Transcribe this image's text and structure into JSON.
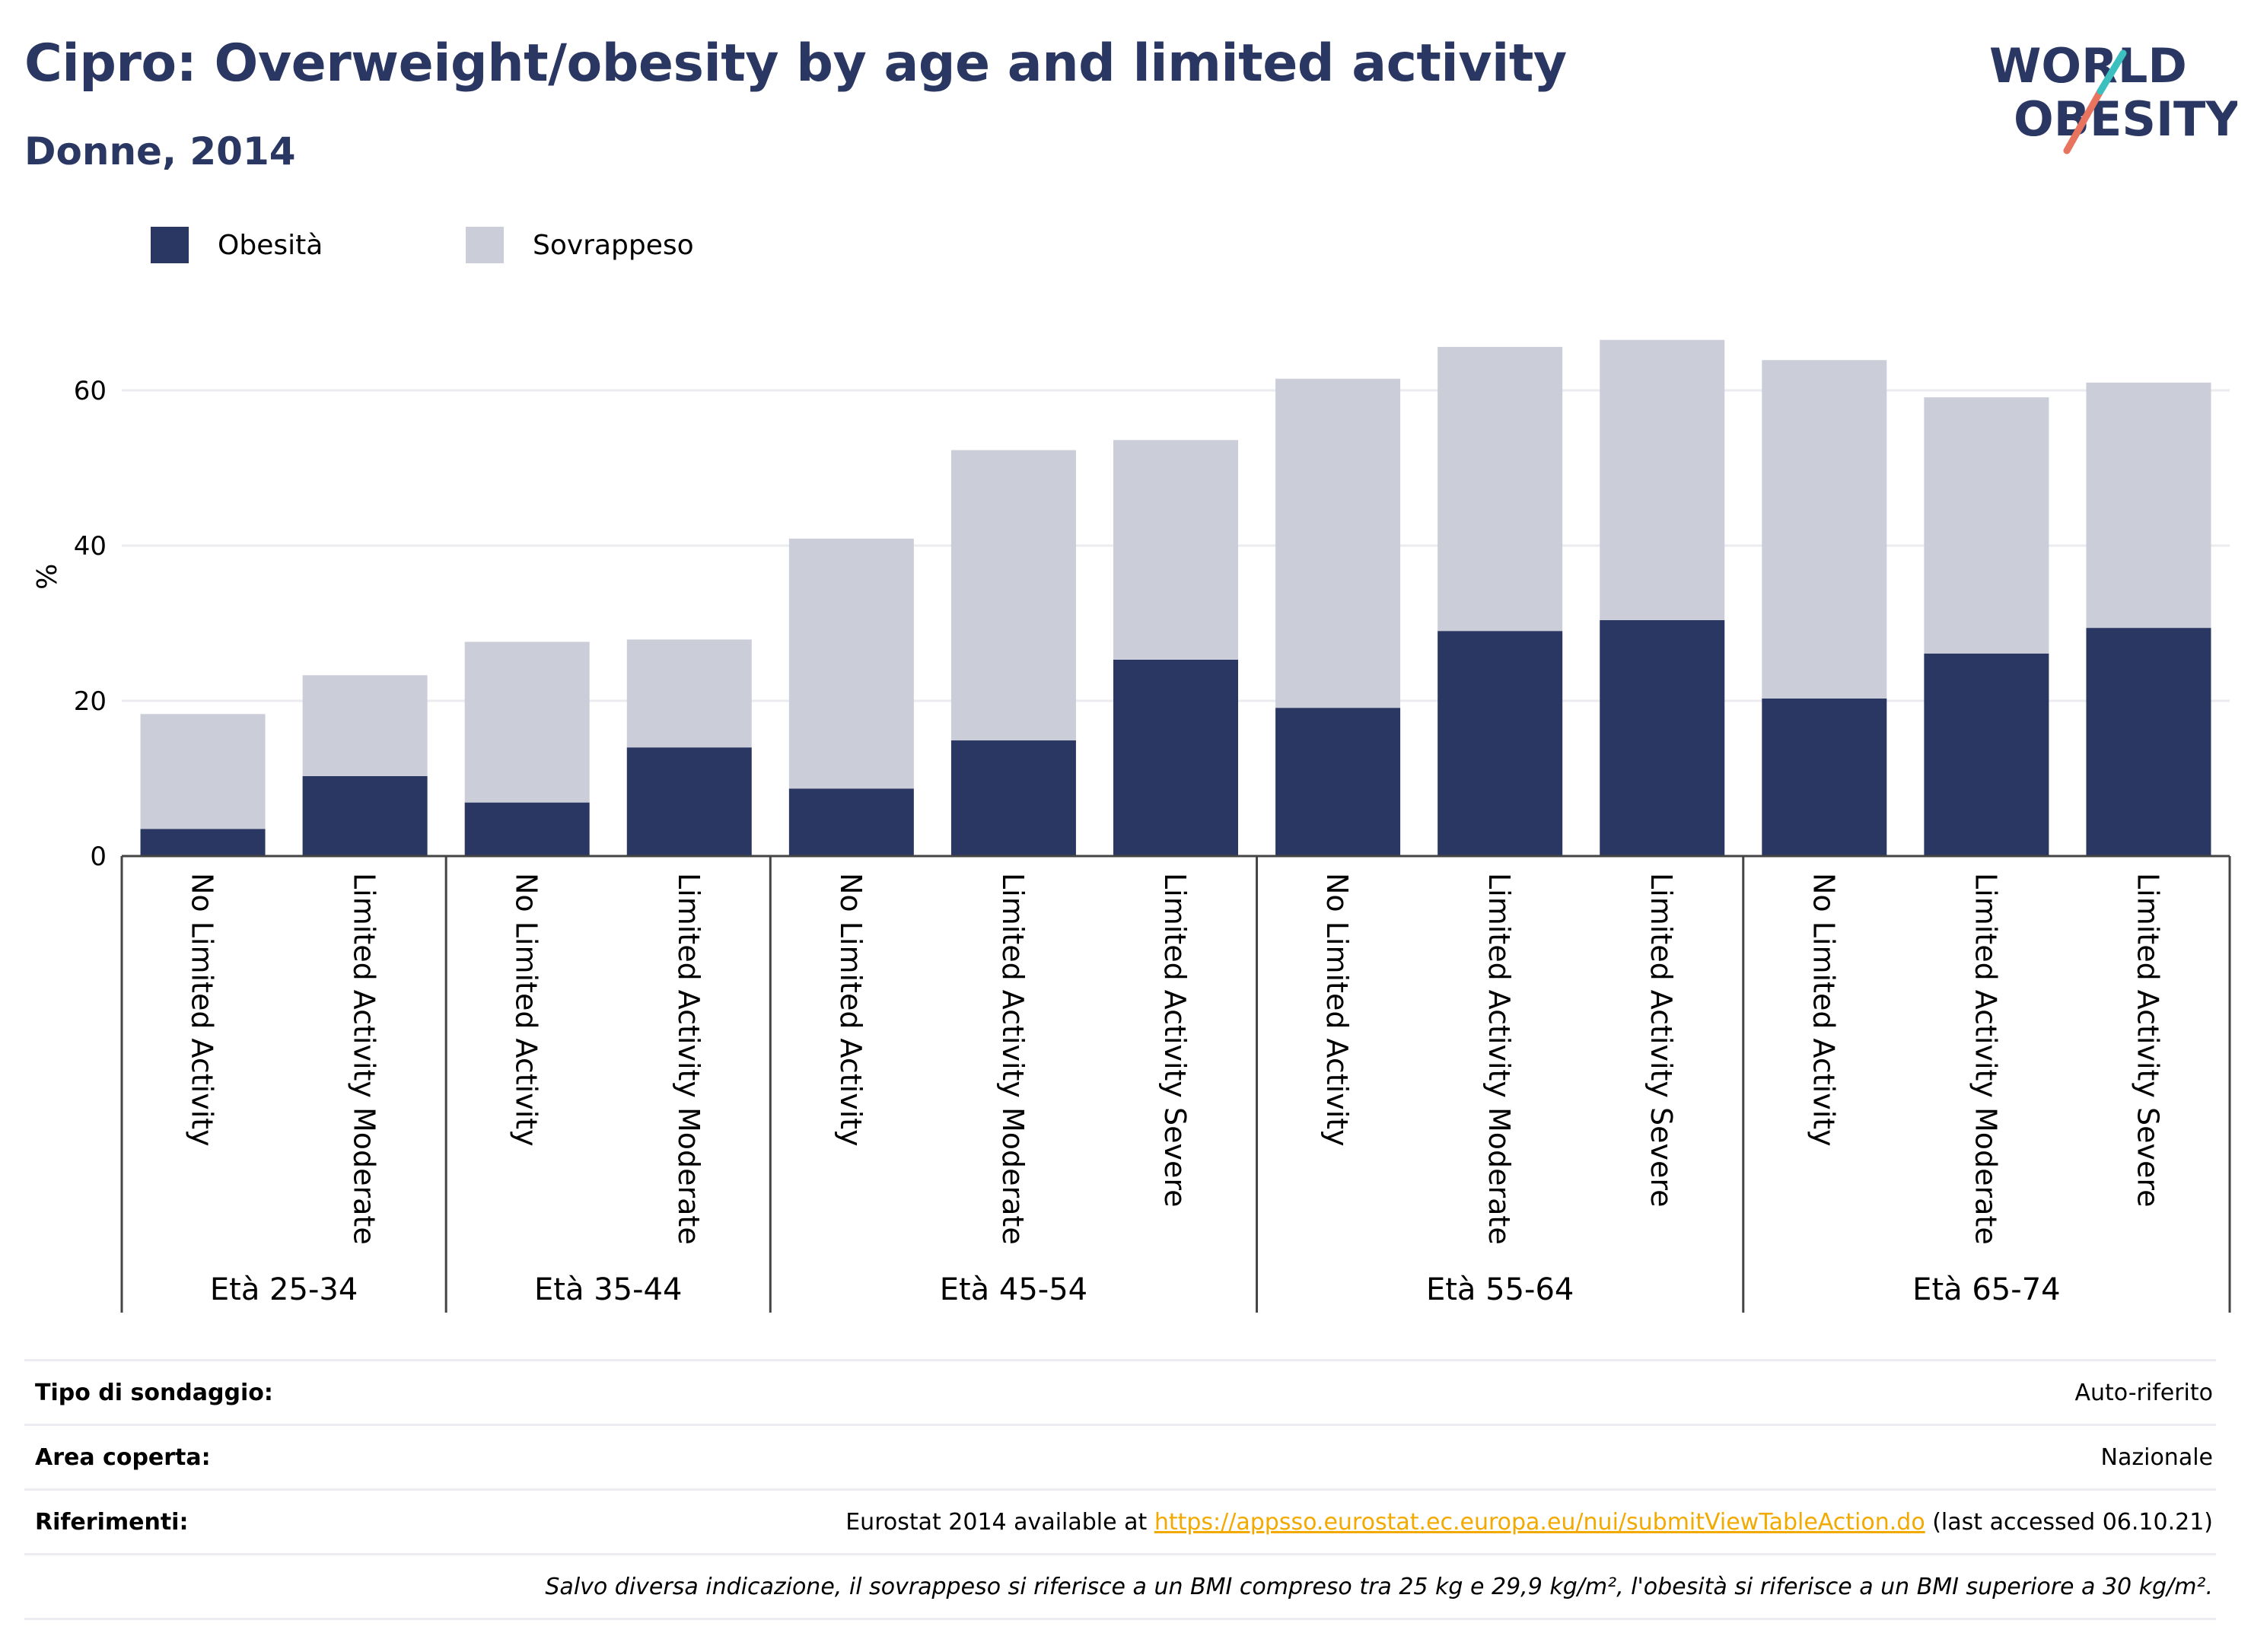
{
  "header": {
    "title": "Cipro: Overweight/obesity by age and limited activity",
    "subtitle": "Donne, 2014",
    "logo_line1": "WORLD",
    "logo_line2": "OBESITY"
  },
  "legend": [
    {
      "label": "Obesità",
      "color": "#2b3763"
    },
    {
      "label": "Sovrappeso",
      "color": "#cbcdd8"
    }
  ],
  "chart_data": {
    "type": "bar",
    "stacked": true,
    "ylabel": "%",
    "ylim": [
      0,
      70
    ],
    "yticks": [
      0,
      20,
      40,
      60
    ],
    "grid": true,
    "legend_position": "top-left",
    "categories": [
      "No Limited Activity",
      "Limited Activity Moderate",
      "No Limited Activity",
      "Limited Activity Moderate",
      "No Limited Activity",
      "Limited Activity Moderate",
      "Limited Activity Severe",
      "No Limited Activity",
      "Limited Activity Moderate",
      "Limited Activity Severe",
      "No Limited Activity",
      "Limited Activity Moderate",
      "Limited Activity Severe"
    ],
    "groups": [
      {
        "label": "Età 25-34",
        "count": 2
      },
      {
        "label": "Età 35-44",
        "count": 2
      },
      {
        "label": "Età 45-54",
        "count": 3
      },
      {
        "label": "Età 55-64",
        "count": 3
      },
      {
        "label": "Età 65-74",
        "count": 3
      }
    ],
    "series": [
      {
        "name": "Obesità",
        "color": "#2b3763",
        "values": [
          3.5,
          10.3,
          6.9,
          14.0,
          8.7,
          14.9,
          25.3,
          19.1,
          29.0,
          30.4,
          20.3,
          26.1,
          29.4
        ]
      },
      {
        "name": "Sovrappeso",
        "color": "#cbcdd8",
        "values": [
          14.8,
          13.0,
          20.7,
          13.9,
          32.2,
          37.4,
          28.3,
          42.4,
          36.6,
          36.1,
          43.6,
          33.0,
          31.6
        ]
      }
    ]
  },
  "info": {
    "survey_type_label": "Tipo di sondaggio:",
    "survey_type_value": "Auto-riferito",
    "area_label": "Area coperta:",
    "area_value": "Nazionale",
    "refs_label": "Riferimenti:",
    "refs_prefix": "Eurostat 2014 available at ",
    "refs_link": "https://appsso.eurostat.ec.europa.eu/nui/submitViewTableAction.do",
    "refs_suffix": " (last accessed 06.10.21)",
    "note": "Salvo diversa indicazione, il sovrappeso si riferisce a un BMI compreso tra 25 kg e 29,9 kg/m², l'obesità si riferisce a un BMI superiore a 30 kg/m²."
  }
}
